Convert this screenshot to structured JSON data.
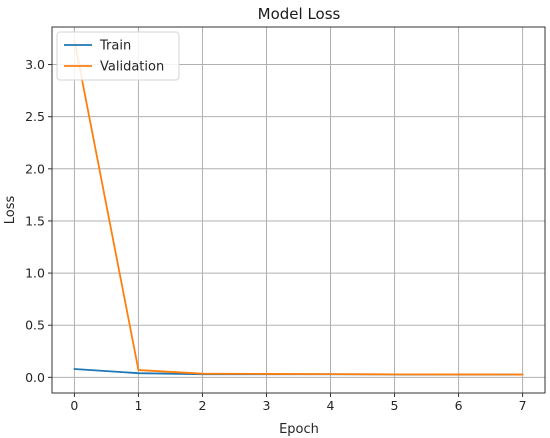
{
  "chart_data": {
    "type": "line",
    "title": "Model Loss",
    "xlabel": "Epoch",
    "ylabel": "Loss",
    "x": [
      0,
      1,
      2,
      3,
      4,
      5,
      6,
      7
    ],
    "series": [
      {
        "name": "Train",
        "color": "#1f77b4",
        "values": [
          0.08,
          0.04,
          0.03,
          0.03,
          0.03,
          0.028,
          0.027,
          0.026
        ]
      },
      {
        "name": "Validation",
        "color": "#ff7f0e",
        "values": [
          3.23,
          0.07,
          0.035,
          0.033,
          0.031,
          0.029,
          0.028,
          0.027
        ]
      }
    ],
    "xlim": [
      -0.35,
      7.35
    ],
    "ylim": [
      -0.15,
      3.36
    ],
    "xticks": [
      "0",
      "1",
      "2",
      "3",
      "4",
      "5",
      "6",
      "7"
    ],
    "yticks": [
      "0.0",
      "0.5",
      "1.0",
      "1.5",
      "2.0",
      "2.5",
      "3.0"
    ],
    "grid": true,
    "legend": "top-left"
  }
}
